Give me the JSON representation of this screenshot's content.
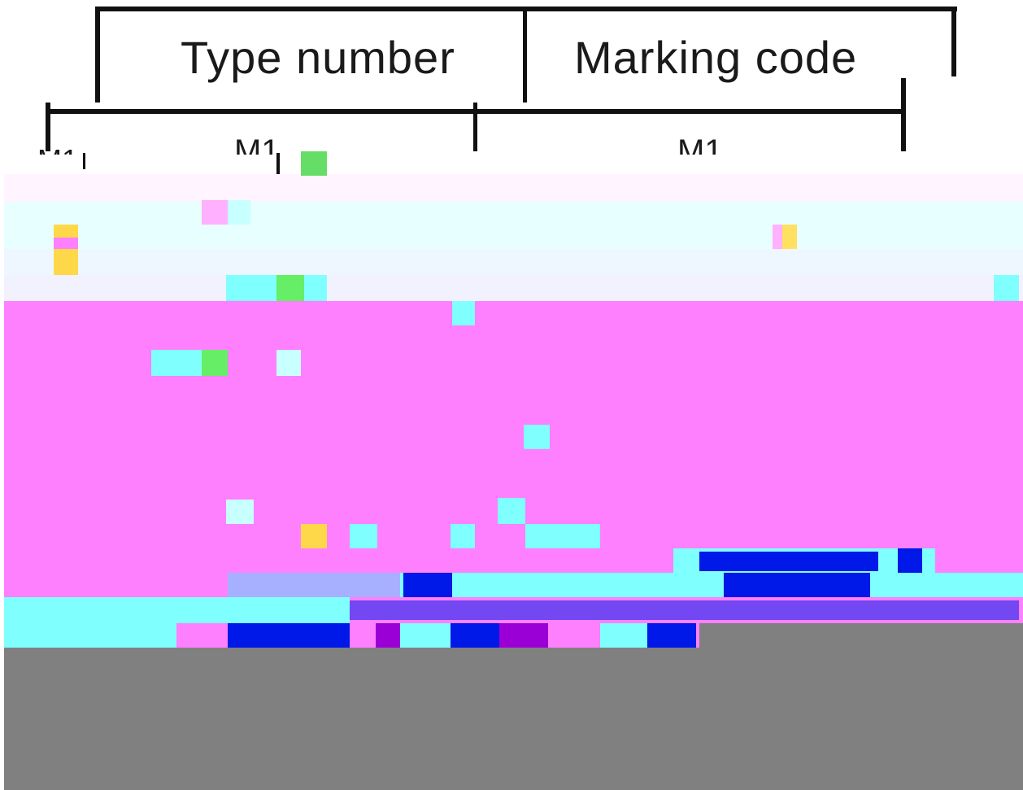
{
  "table": {
    "headers": [
      "Type number",
      "Marking code"
    ],
    "row": {
      "type_number": "M1",
      "marking_code": "M1"
    },
    "left_margin_text": "M1"
  },
  "colors": {
    "ink": "#111111",
    "magenta": "#ff80ff",
    "cyan": "#80ffff",
    "pale_cyan": "#e8ffff",
    "blue": "#0018e8",
    "purple": "#9a00d6",
    "lavender": "#a6b0ff",
    "gray": "#808080"
  }
}
